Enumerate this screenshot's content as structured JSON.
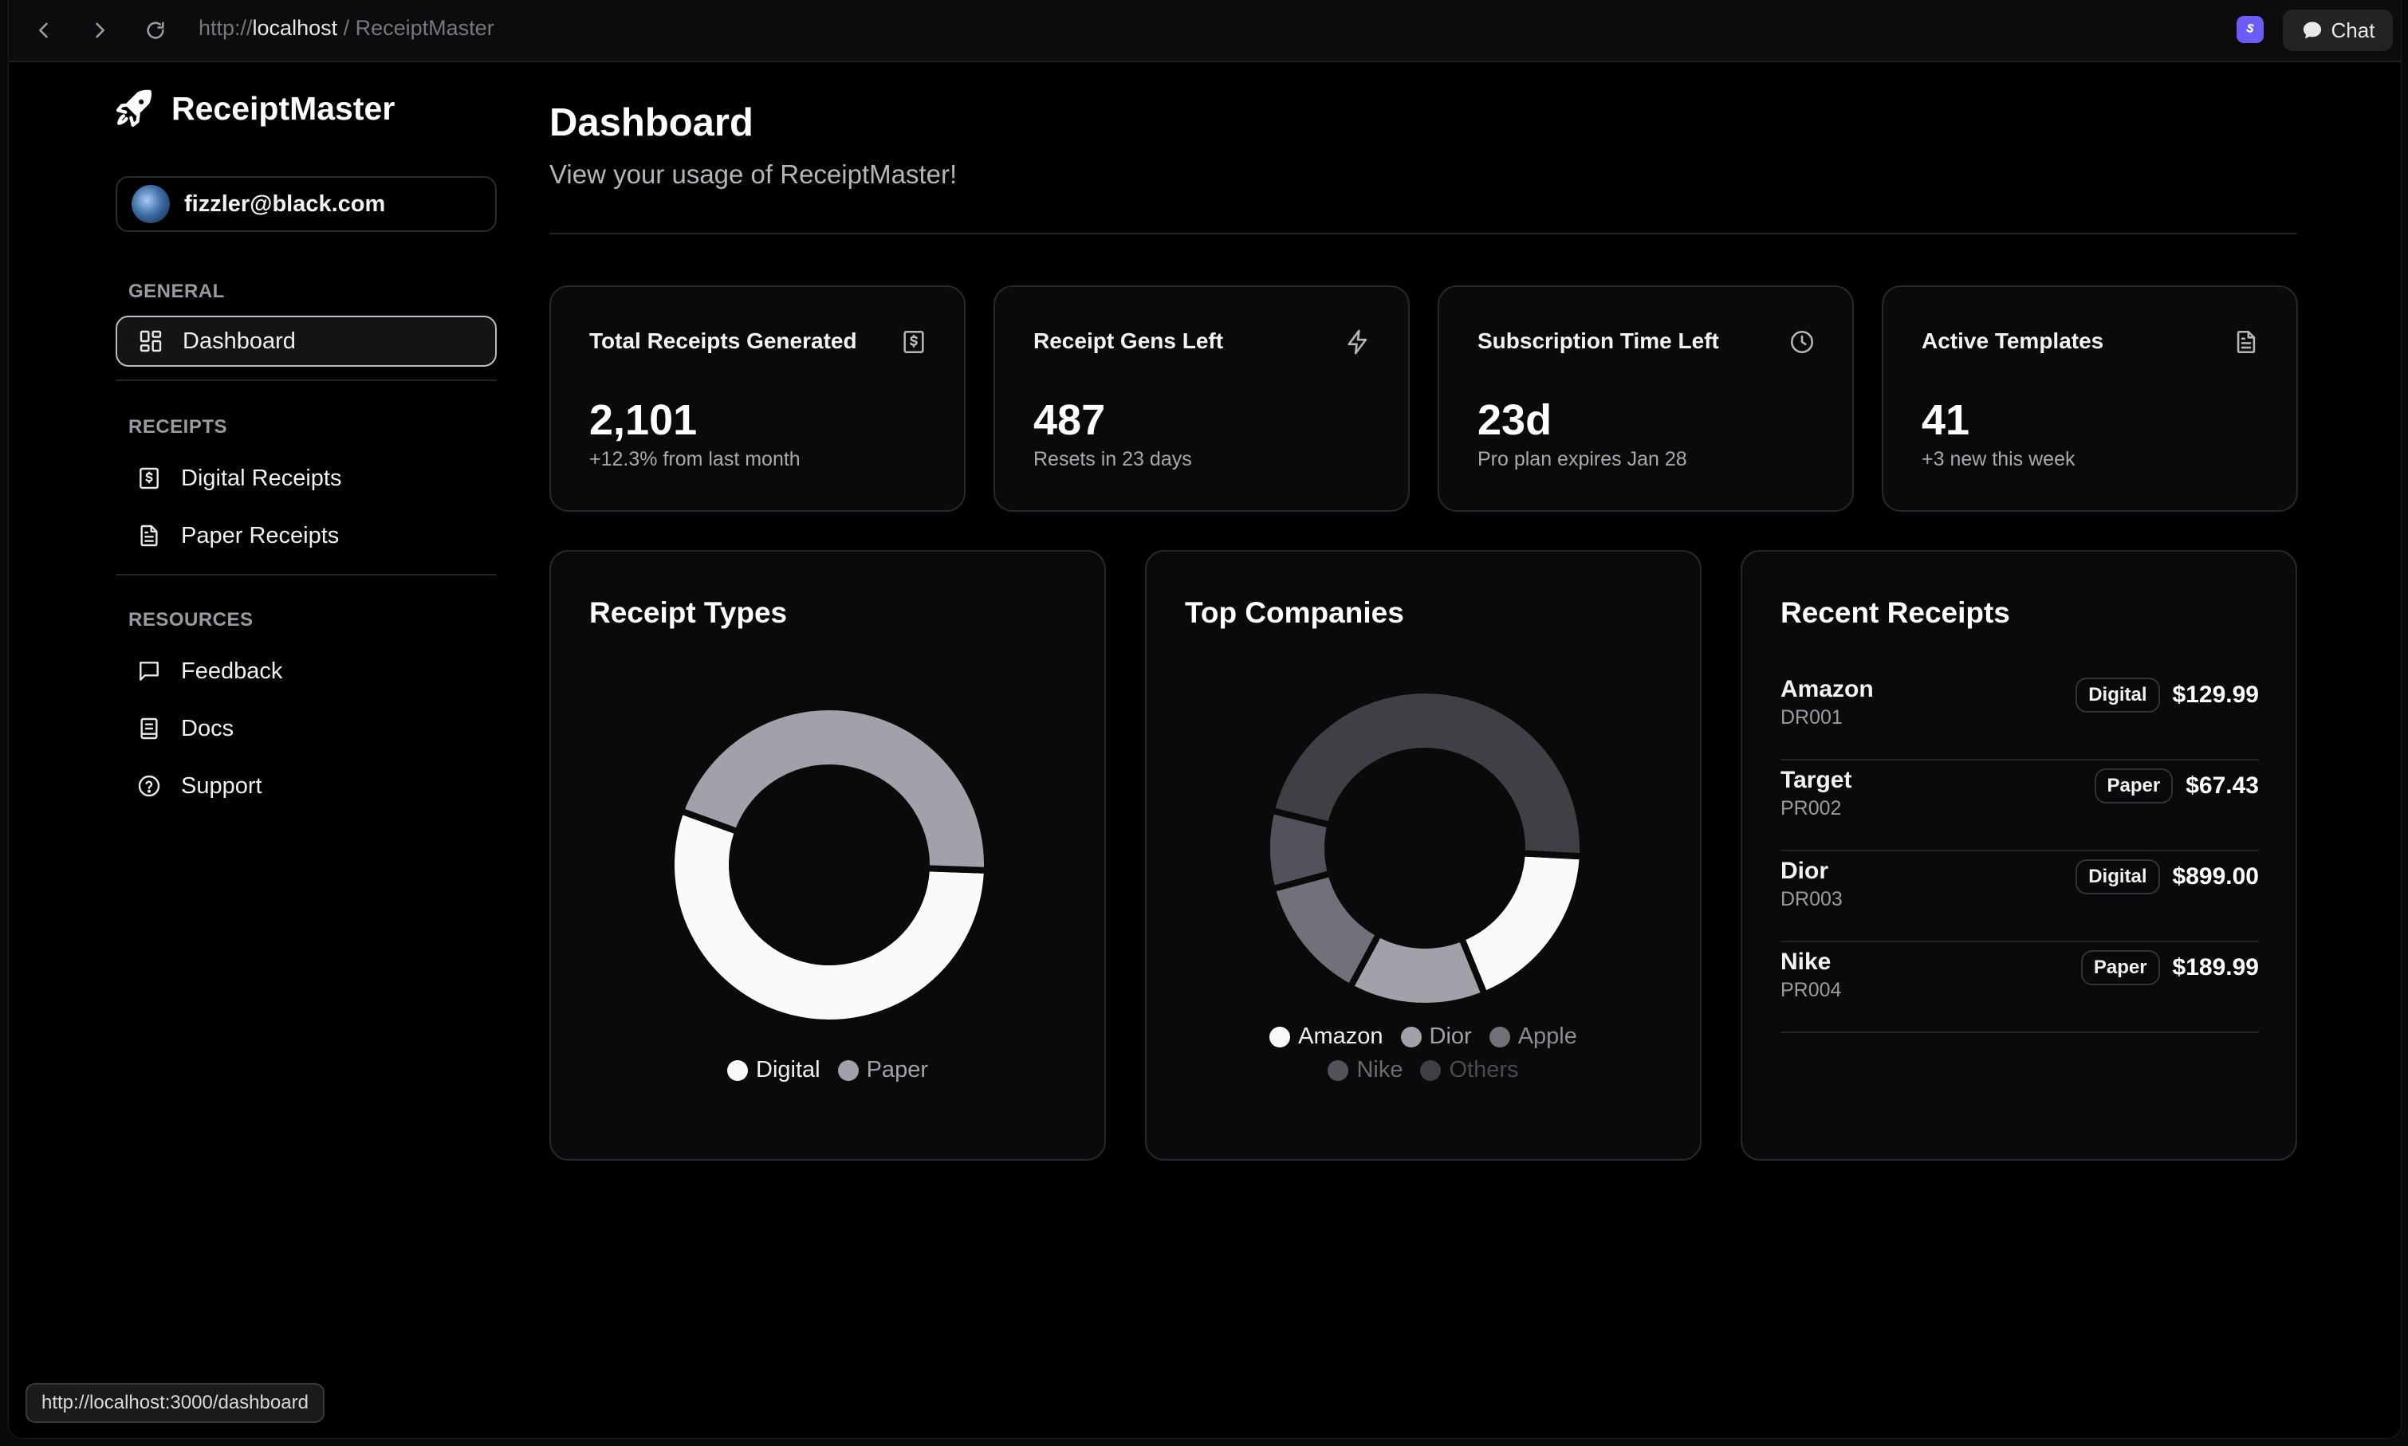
{
  "browser": {
    "url_scheme": "http://",
    "url_host": "localhost",
    "url_rest": " / ReceiptMaster",
    "chat_label": "Chat"
  },
  "sidebar": {
    "brand": "ReceiptMaster",
    "user_email": "fizzler@black.com",
    "sections": {
      "general": "GENERAL",
      "receipts": "RECEIPTS",
      "resources": "RESOURCES"
    },
    "items": {
      "dashboard": "Dashboard",
      "digital": "Digital Receipts",
      "paper": "Paper Receipts",
      "feedback": "Feedback",
      "docs": "Docs",
      "support": "Support"
    }
  },
  "header": {
    "title": "Dashboard",
    "subtitle": "View your usage of ReceiptMaster!"
  },
  "stats": [
    {
      "title": "Total Receipts Generated",
      "value": "2,101",
      "note": "+12.3% from last month",
      "icon": "receipt-icon"
    },
    {
      "title": "Receipt Gens Left",
      "value": "487",
      "note": "Resets in 23 days",
      "icon": "lightning-icon"
    },
    {
      "title": "Subscription Time Left",
      "value": "23d",
      "note": "Pro plan expires Jan 28",
      "icon": "clock-icon"
    },
    {
      "title": "Active Templates",
      "value": "41",
      "note": "+3 new this week",
      "icon": "document-icon"
    }
  ],
  "chart_data": [
    {
      "type": "pie",
      "title": "Receipt Types",
      "categories": [
        "Digital",
        "Paper"
      ],
      "values": [
        55,
        45
      ],
      "colors": [
        "#fafafa",
        "#a1a1aa"
      ],
      "legend": "bottom"
    },
    {
      "type": "pie",
      "title": "Top Companies",
      "categories": [
        "Amazon",
        "Dior",
        "Apple",
        "Nike",
        "Others"
      ],
      "values": [
        18,
        14,
        13,
        8,
        47
      ],
      "colors": [
        "#fafafa",
        "#a1a1aa",
        "#71717a",
        "#52525b",
        "#3f3f46"
      ],
      "legend": "bottom"
    }
  ],
  "recent": {
    "title": "Recent Receipts",
    "rows": [
      {
        "company": "Amazon",
        "id": "DR001",
        "type": "Digital",
        "amount": "$129.99"
      },
      {
        "company": "Target",
        "id": "PR002",
        "type": "Paper",
        "amount": "$67.43"
      },
      {
        "company": "Dior",
        "id": "DR003",
        "type": "Digital",
        "amount": "$899.00"
      },
      {
        "company": "Nike",
        "id": "PR004",
        "type": "Paper",
        "amount": "$189.99"
      }
    ]
  },
  "status_bar": {
    "link": "http://localhost:3000/dashboard"
  }
}
